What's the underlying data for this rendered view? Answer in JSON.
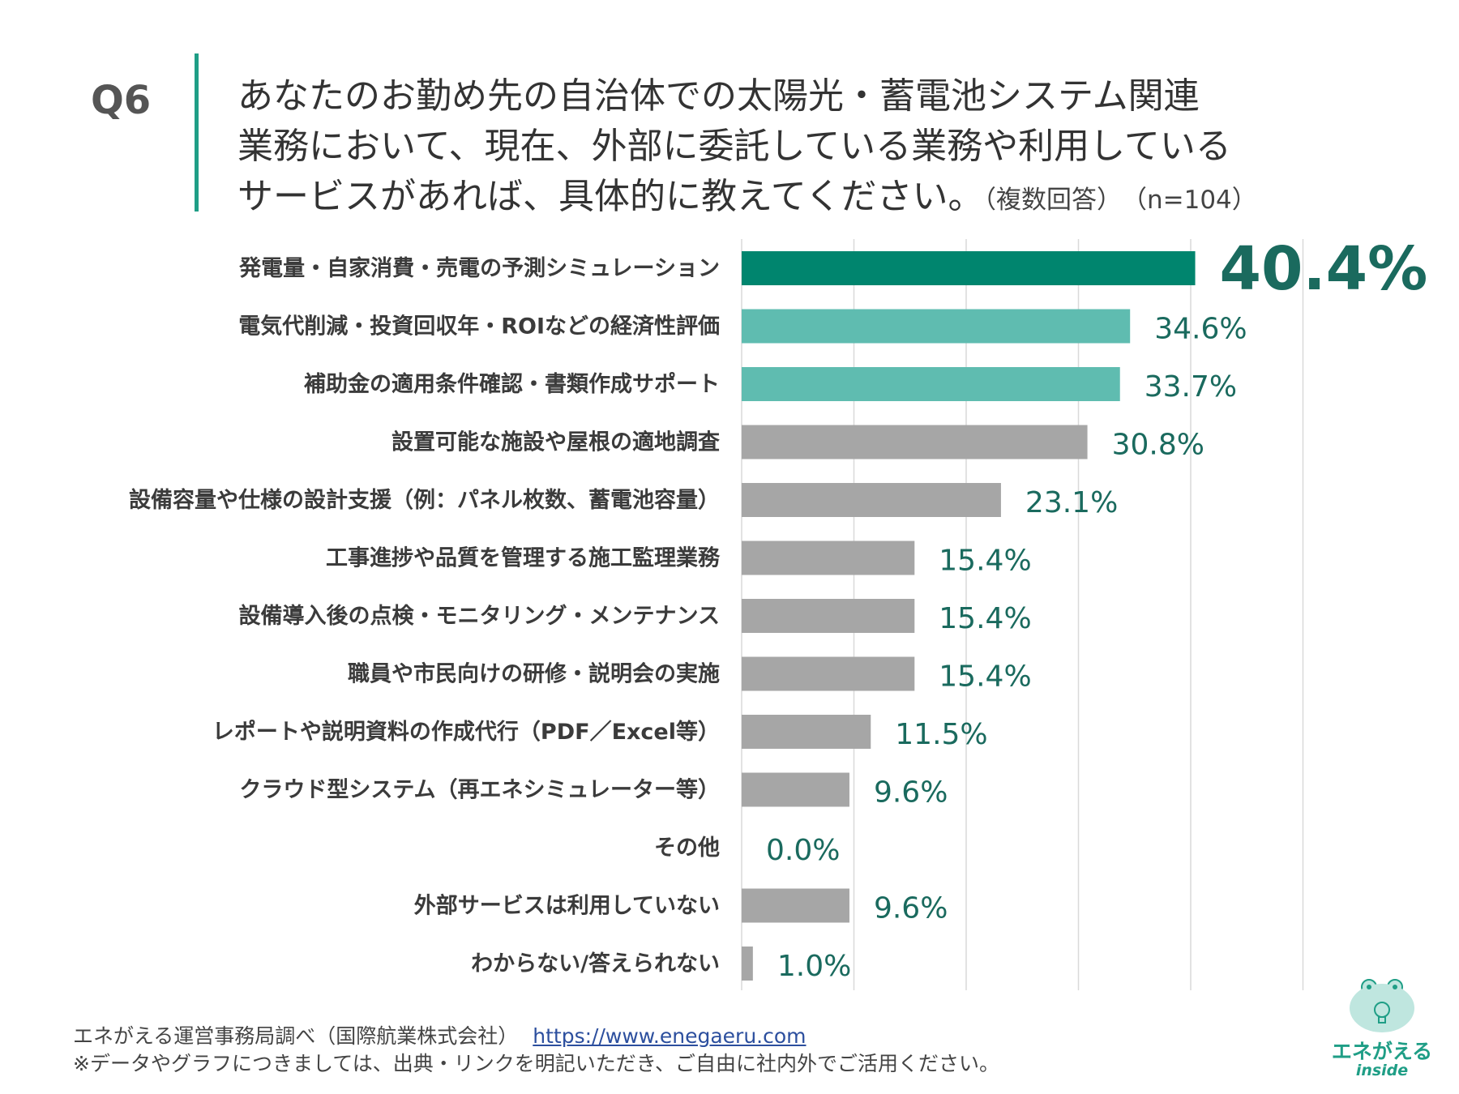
{
  "question": {
    "number": "Q6",
    "lines": [
      "あなたのお勤め先の自治体での太陽光・蓄電池システム関連",
      "業務において、現在、外部に委託している業務や利用している",
      "サービスがあれば、具体的に教えてください。"
    ],
    "note": "（複数回答）　（n=104）"
  },
  "chart_data": {
    "type": "bar",
    "orientation": "horizontal",
    "unit": "%",
    "xlim": [
      0,
      50
    ],
    "grid": true,
    "categories": [
      "発電量・自家消費・売電の予測シミュレーション",
      "電気代削減・投資回収年・ROIなどの経済性評価",
      "補助金の適用条件確認・書類作成サポート",
      "設置可能な施設や屋根の適地調査",
      "設備容量や仕様の設計支援（例：パネル枚数、蓄電池容量）",
      "工事進捗や品質を管理する施工監理業務",
      "設備導入後の点検・モニタリング・メンテナンス",
      "職員や市民向けの研修・説明会の実施",
      "レポートや説明資料の作成代行（PDF／Excel等）",
      "クラウド型システム（再エネシミュレーター等）",
      "その他",
      "外部サービスは利用していない",
      "わからない/答えられない"
    ],
    "values": [
      40.4,
      34.6,
      33.7,
      30.8,
      23.1,
      15.4,
      15.4,
      15.4,
      11.5,
      9.6,
      0.0,
      9.6,
      1.0
    ],
    "value_labels": [
      "40.4%",
      "34.6%",
      "33.7%",
      "30.8%",
      "23.1%",
      "15.4%",
      "15.4%",
      "15.4%",
      "11.5%",
      "9.6%",
      "0.0%",
      "9.6%",
      "1.0%"
    ],
    "colors": {
      "top": "#00856e",
      "second": "#5fbcb0",
      "rest": "#a6a6a6",
      "grid": "#d9d9d9"
    }
  },
  "footer": {
    "source": "エネがえる運営事務局調べ（国際航業株式会社）",
    "url": "https://www.enegaeru.com",
    "notice": "※データやグラフにつきましては、出典・リンクを明記いただき、ご自由に社内外でご活用ください。"
  },
  "logo": {
    "name": "エネがえる",
    "sub": "inside"
  }
}
